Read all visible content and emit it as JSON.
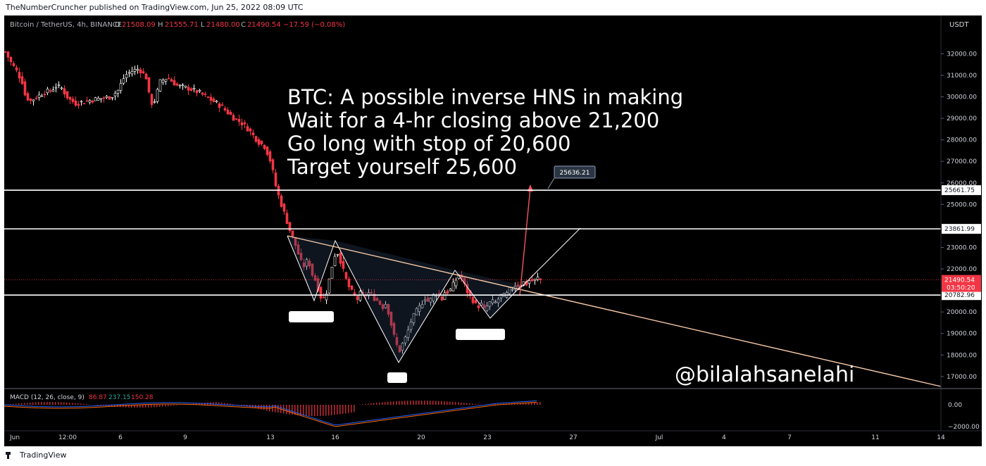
{
  "header": {
    "published_text": "TheNumberCruncher published on TradingView.com, Jun 25, 2022 08:09 UTC"
  },
  "legend": {
    "symbol": "Bitcoin / TetherUS, 4h, BINANCE",
    "o_label": "O",
    "o": "21508.09",
    "h_label": "H",
    "h": "21555.71",
    "l_label": "L",
    "l": "21480.00",
    "c_label": "C",
    "c": "21490.54",
    "change": "−17.59 (−0.08%)"
  },
  "macd_legend": {
    "name": "MACD (12, 26, close, 9)",
    "v1": "86.87",
    "v2": "237.15",
    "v3": "150.28"
  },
  "currency": "USDT",
  "annotation": {
    "lines": [
      "BTC: A possible inverse HNS in making",
      "Wait for a 4-hr closing above 21,200",
      "Go long with stop of 20,600",
      "Target yourself 25,600"
    ],
    "watermark": "@bilalahsanelahi",
    "target_callout": "25636.21"
  },
  "footer": {
    "brand": "TradingView"
  },
  "colors": {
    "up": "#ffffff",
    "down": "#f23645",
    "accent_red": "#f7525f",
    "callout_bg": "#2a3442"
  },
  "chart_data": {
    "type": "candlestick",
    "ylim": [
      16700,
      32800
    ],
    "x_ticks": [
      "Jun",
      "12:00",
      "6",
      "9",
      "13",
      "16",
      "20",
      "23",
      "27",
      "Jul",
      "4",
      "7",
      "11",
      "14"
    ],
    "y_ticks": [
      "32000.00",
      "31000.00",
      "30000.00",
      "29000.00",
      "28000.00",
      "27000.00",
      "26000.00",
      "25000.00",
      "23000.00",
      "22000.00",
      "20000.00",
      "19000.00",
      "18000.00",
      "17000.00"
    ],
    "horizontal_levels": [
      {
        "value": 25661.75,
        "label": "25661.75"
      },
      {
        "value": 23861.99,
        "label": "23861.99"
      },
      {
        "value": 20782.96,
        "label": "20782.96"
      }
    ],
    "last_price": {
      "value": 21490.54,
      "label": "21490.54",
      "countdown": "03:50:20"
    },
    "macd_ticks": [
      "0.00",
      "−2000.00"
    ],
    "close_path": [
      [
        0,
        32100
      ],
      [
        8,
        31600
      ],
      [
        16,
        31200
      ],
      [
        24,
        30700
      ],
      [
        28,
        30100
      ],
      [
        35,
        29800
      ],
      [
        45,
        30000
      ],
      [
        55,
        30200
      ],
      [
        65,
        30300
      ],
      [
        72,
        30500
      ],
      [
        80,
        30400
      ],
      [
        90,
        29900
      ],
      [
        100,
        29700
      ],
      [
        115,
        29800
      ],
      [
        130,
        29900
      ],
      [
        150,
        30000
      ],
      [
        160,
        30300
      ],
      [
        170,
        31000
      ],
      [
        180,
        31200
      ],
      [
        190,
        31300
      ],
      [
        200,
        30900
      ],
      [
        205,
        29900
      ],
      [
        210,
        29600
      ],
      [
        220,
        30700
      ],
      [
        230,
        30900
      ],
      [
        245,
        30500
      ],
      [
        260,
        30400
      ],
      [
        275,
        30200
      ],
      [
        285,
        30000
      ],
      [
        295,
        29800
      ],
      [
        305,
        29600
      ],
      [
        315,
        29300
      ],
      [
        325,
        29000
      ],
      [
        335,
        28800
      ],
      [
        345,
        28500
      ],
      [
        352,
        28200
      ],
      [
        360,
        27900
      ],
      [
        368,
        27700
      ],
      [
        375,
        27200
      ],
      [
        380,
        26500
      ],
      [
        385,
        25700
      ],
      [
        390,
        25200
      ],
      [
        395,
        24700
      ],
      [
        400,
        24200
      ],
      [
        405,
        23700
      ],
      [
        410,
        23300
      ],
      [
        415,
        22800
      ],
      [
        420,
        22300
      ],
      [
        425,
        22100
      ],
      [
        430,
        22500
      ],
      [
        435,
        21800
      ],
      [
        440,
        21500
      ],
      [
        445,
        21000
      ],
      [
        450,
        20500
      ],
      [
        455,
        20800
      ],
      [
        460,
        21500
      ],
      [
        465,
        22300
      ],
      [
        470,
        22900
      ],
      [
        475,
        22500
      ],
      [
        480,
        21900
      ],
      [
        485,
        21400
      ],
      [
        490,
        21000
      ],
      [
        495,
        20800
      ],
      [
        500,
        20600
      ],
      [
        505,
        20900
      ],
      [
        510,
        20700
      ],
      [
        515,
        20900
      ],
      [
        520,
        20800
      ],
      [
        525,
        20600
      ],
      [
        530,
        20500
      ],
      [
        535,
        20200
      ],
      [
        540,
        20400
      ],
      [
        545,
        19900
      ],
      [
        550,
        19100
      ],
      [
        555,
        18500
      ],
      [
        560,
        18200
      ],
      [
        565,
        18600
      ],
      [
        570,
        18900
      ],
      [
        575,
        19500
      ],
      [
        580,
        19800
      ],
      [
        585,
        20100
      ],
      [
        590,
        20300
      ],
      [
        595,
        20700
      ],
      [
        600,
        20500
      ],
      [
        605,
        20600
      ],
      [
        610,
        20900
      ],
      [
        615,
        20800
      ],
      [
        620,
        20600
      ],
      [
        625,
        21000
      ],
      [
        630,
        20900
      ],
      [
        635,
        21200
      ],
      [
        640,
        21500
      ],
      [
        645,
        21800
      ],
      [
        650,
        21400
      ],
      [
        655,
        21000
      ],
      [
        660,
        20700
      ],
      [
        665,
        20500
      ],
      [
        670,
        20200
      ],
      [
        675,
        20400
      ],
      [
        680,
        20100
      ],
      [
        685,
        20300
      ],
      [
        690,
        20500
      ],
      [
        695,
        20400
      ],
      [
        700,
        20600
      ],
      [
        705,
        20800
      ],
      [
        710,
        20700
      ],
      [
        715,
        21000
      ],
      [
        720,
        21100
      ],
      [
        725,
        21300
      ],
      [
        730,
        21200
      ],
      [
        735,
        21400
      ],
      [
        740,
        21300
      ],
      [
        745,
        21500
      ],
      [
        750,
        21400
      ],
      [
        755,
        21600
      ],
      [
        760,
        21490
      ]
    ]
  }
}
